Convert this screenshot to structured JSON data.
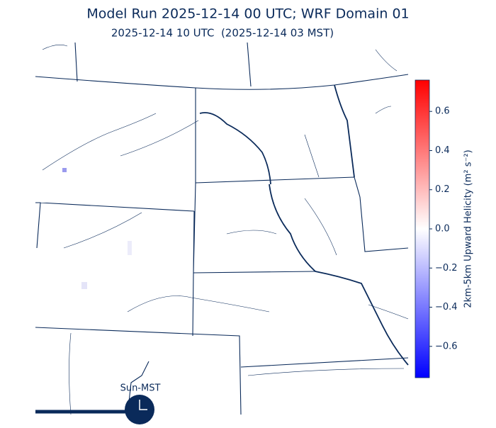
{
  "header": {
    "title": "Model Run 2025-12-14 00 UTC; WRF Domain 01",
    "subtitle": "2025-12-14 10 UTC  (2025-12-14 03 MST)"
  },
  "colorbar": {
    "label": "2km-5km Upward Helicity (m² s⁻²)",
    "lim": [
      -0.76,
      0.76
    ],
    "ticks": [
      {
        "value": -0.6,
        "label": "−0.6"
      },
      {
        "value": -0.4,
        "label": "−0.4"
      },
      {
        "value": -0.2,
        "label": "−0.2"
      },
      {
        "value": 0,
        "label": "0.0"
      },
      0.2,
      0.4,
      0.6
    ],
    "colors": [
      "#0000ff",
      "#ffffff",
      "#ff0000"
    ]
  },
  "clock": {
    "label": "Sun-MST"
  }
}
